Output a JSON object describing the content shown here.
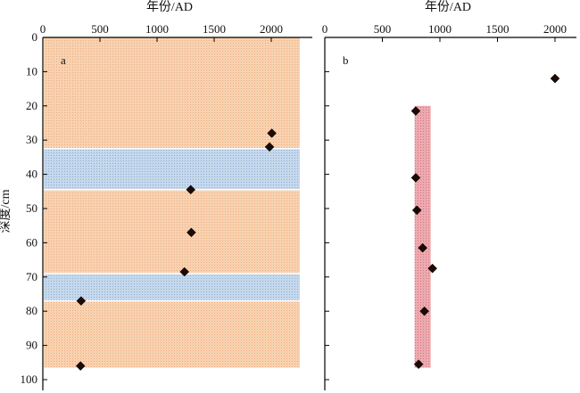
{
  "chart_data": [
    {
      "type": "scatter",
      "panel_label": "a",
      "xlabel": "年份/AD",
      "ylabel": "深度/cm",
      "xlim": [
        0,
        2300
      ],
      "ylim": [
        0,
        100
      ],
      "y_inverted": true,
      "x_ticks": [
        0,
        500,
        1000,
        1500,
        2000
      ],
      "y_ticks": [
        0,
        10,
        20,
        30,
        40,
        50,
        60,
        70,
        80,
        90,
        100
      ],
      "background_bands": [
        {
          "y_from": 0,
          "y_to": 32.5,
          "color": "#f7cca8"
        },
        {
          "y_from": 32.5,
          "y_to": 44.5,
          "color": "#b9cfe6"
        },
        {
          "y_from": 44.5,
          "y_to": 69,
          "color": "#f7cca8"
        },
        {
          "y_from": 69,
          "y_to": 77,
          "color": "#b9cfe6"
        },
        {
          "y_from": 77,
          "y_to": 96.5,
          "color": "#f7cca8"
        }
      ],
      "band_x_range": [
        0,
        2250
      ],
      "points": [
        {
          "x": 2005,
          "y": 28
        },
        {
          "x": 1985,
          "y": 32
        },
        {
          "x": 1295,
          "y": 44.5
        },
        {
          "x": 1300,
          "y": 57
        },
        {
          "x": 1240,
          "y": 68.5
        },
        {
          "x": 335,
          "y": 77
        },
        {
          "x": 330,
          "y": 96
        }
      ]
    },
    {
      "type": "scatter",
      "panel_label": "b",
      "xlabel": "年份/AD",
      "xlim": [
        0,
        2300
      ],
      "ylim": [
        0,
        100
      ],
      "y_inverted": true,
      "x_ticks": [
        0,
        500,
        1000,
        1500,
        2000
      ],
      "y_ticks": [
        0,
        10,
        20,
        30,
        40,
        50,
        60,
        70,
        80,
        90,
        100
      ],
      "highlight_box": {
        "x_from": 780,
        "x_to": 920,
        "y_from": 20,
        "y_to": 96.5,
        "color": "#e8a0a6"
      },
      "points": [
        {
          "x": 2000,
          "y": 12
        },
        {
          "x": 790,
          "y": 21.5
        },
        {
          "x": 790,
          "y": 41
        },
        {
          "x": 800,
          "y": 50.5
        },
        {
          "x": 850,
          "y": 61.5
        },
        {
          "x": 935,
          "y": 67.5
        },
        {
          "x": 865,
          "y": 80
        },
        {
          "x": 815,
          "y": 95.5
        }
      ]
    }
  ]
}
